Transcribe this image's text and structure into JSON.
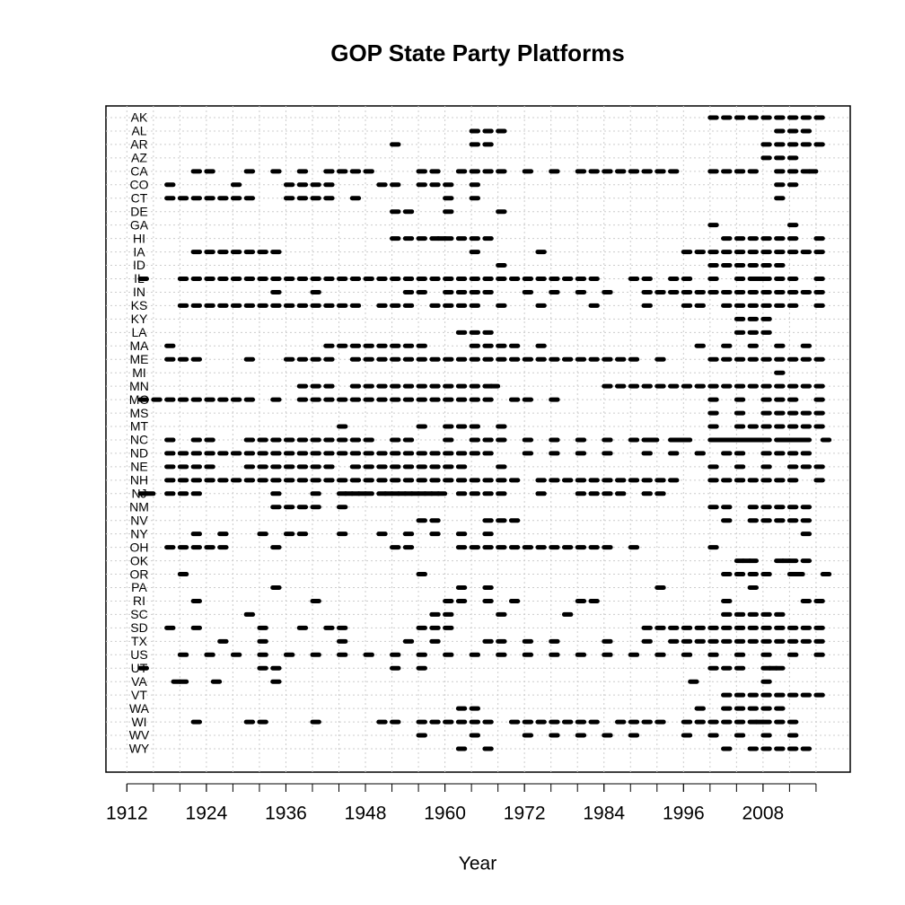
{
  "chart_data": {
    "type": "timeline",
    "title": "GOP State Party Platforms",
    "xlabel": "Year",
    "xlim": [
      1908.84,
      2021.16
    ],
    "xticks": [
      1912,
      1924,
      1936,
      1948,
      1960,
      1972,
      1984,
      1996,
      2008
    ],
    "xticks_minor": [
      1912,
      1916,
      1920,
      1924,
      1928,
      1932,
      1936,
      1940,
      1944,
      1948,
      1952,
      1956,
      1960,
      1964,
      1968,
      1972,
      1976,
      1980,
      1984,
      1988,
      1992,
      1996,
      2000,
      2004,
      2008,
      2012,
      2016
    ],
    "grid": true,
    "color": "#000000",
    "categories": [
      "AK",
      "AL",
      "AR",
      "AZ",
      "CA",
      "CO",
      "CT",
      "DE",
      "GA",
      "HI",
      "IA",
      "ID",
      "IL",
      "IN",
      "KS",
      "KY",
      "LA",
      "MA",
      "ME",
      "MI",
      "MN",
      "MO",
      "MS",
      "MT",
      "NC",
      "ND",
      "NE",
      "NH",
      "NJ",
      "NM",
      "NV",
      "NY",
      "OH",
      "OK",
      "OR",
      "PA",
      "RI",
      "SC",
      "SD",
      "TX",
      "US",
      "UT",
      "VA",
      "VT",
      "WA",
      "WI",
      "WV",
      "WY"
    ],
    "values": [
      [
        2000,
        2002,
        2004,
        2006,
        2008,
        2010,
        2012,
        2014,
        2016
      ],
      [
        1964,
        1966,
        1968,
        2010,
        2012,
        2014
      ],
      [
        1952,
        1964,
        1966,
        2008,
        2010,
        2012,
        2014,
        2016
      ],
      [
        2008,
        2010,
        2012
      ],
      [
        1922,
        1924,
        1930,
        1934,
        1938,
        1942,
        1944,
        1946,
        1948,
        1956,
        1958,
        1962,
        1964,
        1966,
        1968,
        1972,
        1976,
        1980,
        1982,
        1984,
        1986,
        1988,
        1990,
        1992,
        1994,
        2000,
        2002,
        2004,
        2006,
        2010,
        2012,
        2014,
        2015
      ],
      [
        1918,
        1928,
        1936,
        1938,
        1940,
        1942,
        1950,
        1952,
        1956,
        1958,
        1960,
        1964,
        2010,
        2012
      ],
      [
        1918,
        1920,
        1922,
        1924,
        1926,
        1928,
        1930,
        1936,
        1938,
        1940,
        1942,
        1946,
        1960,
        1964,
        2010
      ],
      [
        1952,
        1954,
        1960,
        1968
      ],
      [
        2000,
        2012
      ],
      [
        1952,
        1954,
        1956,
        1958,
        1959,
        1960,
        1962,
        1964,
        1966,
        2002,
        2004,
        2006,
        2008,
        2010,
        2012,
        2016
      ],
      [
        1922,
        1924,
        1926,
        1928,
        1930,
        1932,
        1934,
        1964,
        1974,
        1996,
        1998,
        2000,
        2002,
        2004,
        2006,
        2008,
        2010,
        2012,
        2014,
        2016
      ],
      [
        1968,
        2000,
        2002,
        2004,
        2006,
        2008,
        2010
      ],
      [
        1914,
        1920,
        1922,
        1924,
        1926,
        1928,
        1930,
        1932,
        1934,
        1936,
        1938,
        1940,
        1942,
        1944,
        1946,
        1948,
        1950,
        1952,
        1954,
        1956,
        1958,
        1960,
        1962,
        1964,
        1966,
        1968,
        1970,
        1972,
        1974,
        1976,
        1978,
        1980,
        1982,
        1988,
        1990,
        1994,
        1996,
        2000,
        2004,
        2006,
        2007,
        2008,
        2010,
        2012,
        2016
      ],
      [
        1934,
        1940,
        1954,
        1956,
        1960,
        1962,
        1964,
        1966,
        1972,
        1976,
        1980,
        1984,
        1990,
        1992,
        1994,
        1996,
        1998,
        2000,
        2002,
        2004,
        2006,
        2008,
        2010,
        2012,
        2014,
        2016
      ],
      [
        1920,
        1922,
        1924,
        1926,
        1928,
        1930,
        1932,
        1934,
        1936,
        1938,
        1940,
        1942,
        1944,
        1946,
        1950,
        1952,
        1954,
        1958,
        1960,
        1962,
        1964,
        1968,
        1974,
        1982,
        1990,
        1996,
        1998,
        2002,
        2004,
        2006,
        2008,
        2010,
        2012,
        2016
      ],
      [
        2004,
        2006,
        2008
      ],
      [
        1962,
        1964,
        1966,
        2004,
        2006,
        2008
      ],
      [
        1918,
        1942,
        1944,
        1946,
        1948,
        1950,
        1952,
        1954,
        1956,
        1964,
        1966,
        1968,
        1970,
        1974,
        1998,
        2002,
        2006,
        2010,
        2014
      ],
      [
        1918,
        1920,
        1922,
        1930,
        1936,
        1938,
        1940,
        1942,
        1946,
        1948,
        1950,
        1952,
        1954,
        1956,
        1958,
        1960,
        1962,
        1964,
        1966,
        1968,
        1970,
        1972,
        1974,
        1976,
        1978,
        1980,
        1982,
        1984,
        1986,
        1988,
        1992,
        2000,
        2002,
        2004,
        2006,
        2008,
        2010,
        2012,
        2014,
        2016
      ],
      [
        2010
      ],
      [
        1938,
        1940,
        1942,
        1946,
        1948,
        1950,
        1952,
        1954,
        1956,
        1958,
        1960,
        1962,
        1964,
        1966,
        1967,
        1984,
        1986,
        1988,
        1990,
        1992,
        1994,
        1996,
        1998,
        2000,
        2002,
        2004,
        2006,
        2008,
        2010,
        2012,
        2014,
        2016
      ],
      [
        1914,
        1916,
        1918,
        1920,
        1922,
        1924,
        1926,
        1928,
        1930,
        1934,
        1938,
        1940,
        1942,
        1944,
        1946,
        1948,
        1950,
        1952,
        1954,
        1956,
        1958,
        1960,
        1962,
        1964,
        1966,
        1970,
        1972,
        1976,
        2000,
        2004,
        2008,
        2010,
        2012,
        2016
      ],
      [
        2000,
        2004,
        2008,
        2010,
        2012,
        2014,
        2016
      ],
      [
        1944,
        1956,
        1960,
        1962,
        1964,
        1968,
        2000,
        2004,
        2006,
        2008,
        2010,
        2012,
        2014,
        2016
      ],
      [
        1918,
        1922,
        1924,
        1930,
        1932,
        1934,
        1936,
        1938,
        1940,
        1942,
        1944,
        1946,
        1948,
        1952,
        1954,
        1960,
        1964,
        1966,
        1968,
        1972,
        1976,
        1980,
        1984,
        1988,
        1990,
        1991,
        1994,
        1995,
        1996,
        2000,
        2001,
        2002,
        2003,
        2004,
        2005,
        2006,
        2007,
        2008,
        2010,
        2011,
        2012,
        2013,
        2014,
        2017
      ],
      [
        1918,
        1920,
        1922,
        1924,
        1926,
        1928,
        1930,
        1932,
        1934,
        1936,
        1938,
        1940,
        1942,
        1944,
        1946,
        1948,
        1950,
        1952,
        1954,
        1956,
        1958,
        1960,
        1962,
        1964,
        1966,
        1972,
        1976,
        1980,
        1984,
        1990,
        1994,
        1998,
        2002,
        2004,
        2008,
        2010,
        2012,
        2014
      ],
      [
        1918,
        1920,
        1922,
        1924,
        1930,
        1932,
        1934,
        1936,
        1938,
        1940,
        1942,
        1946,
        1948,
        1950,
        1952,
        1954,
        1956,
        1958,
        1960,
        1962,
        1968,
        2000,
        2004,
        2008,
        2012,
        2014,
        2016
      ],
      [
        1918,
        1920,
        1922,
        1924,
        1926,
        1928,
        1930,
        1932,
        1934,
        1936,
        1938,
        1940,
        1942,
        1944,
        1946,
        1948,
        1950,
        1952,
        1954,
        1956,
        1958,
        1960,
        1962,
        1964,
        1966,
        1968,
        1970,
        1974,
        1976,
        1978,
        1980,
        1982,
        1984,
        1986,
        1988,
        1990,
        1992,
        1994,
        2000,
        2002,
        2004,
        2006,
        2008,
        2010,
        2012,
        2016
      ],
      [
        1914,
        1915,
        1918,
        1920,
        1922,
        1934,
        1940,
        1944,
        1945,
        1946,
        1947,
        1948,
        1950,
        1951,
        1952,
        1953,
        1954,
        1955,
        1956,
        1957,
        1958,
        1959,
        1962,
        1964,
        1966,
        1968,
        1974,
        1980,
        1982,
        1984,
        1986,
        1990,
        1992
      ],
      [
        1934,
        1936,
        1938,
        1940,
        1944,
        2000,
        2002,
        2006,
        2008,
        2010,
        2012,
        2014
      ],
      [
        1956,
        1958,
        1966,
        1968,
        1970,
        2002,
        2006,
        2008,
        2010,
        2012,
        2014
      ],
      [
        1922,
        1926,
        1932,
        1936,
        1938,
        1944,
        1950,
        1954,
        1958,
        1962,
        1966,
        2014
      ],
      [
        1918,
        1920,
        1922,
        1924,
        1926,
        1934,
        1952,
        1954,
        1962,
        1964,
        1966,
        1968,
        1970,
        1972,
        1974,
        1976,
        1978,
        1980,
        1982,
        1984,
        1988,
        2000
      ],
      [
        2004,
        2005,
        2006,
        2010,
        2011,
        2012,
        2014
      ],
      [
        1920,
        1956,
        2002,
        2004,
        2006,
        2008,
        2012,
        2013,
        2017
      ],
      [
        1934,
        1962,
        1966,
        1992,
        2006
      ],
      [
        1922,
        1940,
        1960,
        1962,
        1966,
        1970,
        1980,
        1982,
        2002,
        2014,
        2016
      ],
      [
        1930,
        1958,
        1960,
        1968,
        1978,
        2002,
        2004,
        2006,
        2008,
        2010
      ],
      [
        1918,
        1922,
        1932,
        1938,
        1942,
        1944,
        1956,
        1958,
        1960,
        1990,
        1992,
        1994,
        1996,
        1998,
        2000,
        2002,
        2004,
        2006,
        2008,
        2010,
        2012,
        2014,
        2016
      ],
      [
        1926,
        1932,
        1944,
        1954,
        1958,
        1966,
        1968,
        1972,
        1976,
        1984,
        1990,
        1994,
        1996,
        1998,
        2000,
        2002,
        2004,
        2006,
        2008,
        2010,
        2012,
        2014,
        2016
      ],
      [
        1920,
        1924,
        1928,
        1932,
        1936,
        1940,
        1944,
        1948,
        1952,
        1956,
        1960,
        1964,
        1968,
        1972,
        1976,
        1980,
        1984,
        1988,
        1992,
        1996,
        2000,
        2004,
        2008,
        2012,
        2016
      ],
      [
        1914,
        1932,
        1934,
        1952,
        1956,
        2000,
        2002,
        2004,
        2008,
        2009,
        2010
      ],
      [
        1919,
        1920,
        1925,
        1934,
        1997,
        2008
      ],
      [
        2002,
        2004,
        2006,
        2008,
        2010,
        2012,
        2014,
        2016
      ],
      [
        1962,
        1964,
        1998,
        2002,
        2004,
        2006,
        2008,
        2010
      ],
      [
        1922,
        1930,
        1932,
        1940,
        1950,
        1952,
        1956,
        1958,
        1960,
        1962,
        1964,
        1966,
        1970,
        1972,
        1974,
        1976,
        1978,
        1980,
        1982,
        1986,
        1988,
        1990,
        1992,
        1996,
        1998,
        2000,
        2002,
        2004,
        2006,
        2007,
        2008,
        2010,
        2012
      ],
      [
        1956,
        1964,
        1972,
        1976,
        1980,
        1984,
        1988,
        1996,
        2000,
        2004,
        2008,
        2012
      ],
      [
        1962,
        1966,
        2002,
        2006,
        2008,
        2010,
        2012,
        2014
      ]
    ]
  }
}
